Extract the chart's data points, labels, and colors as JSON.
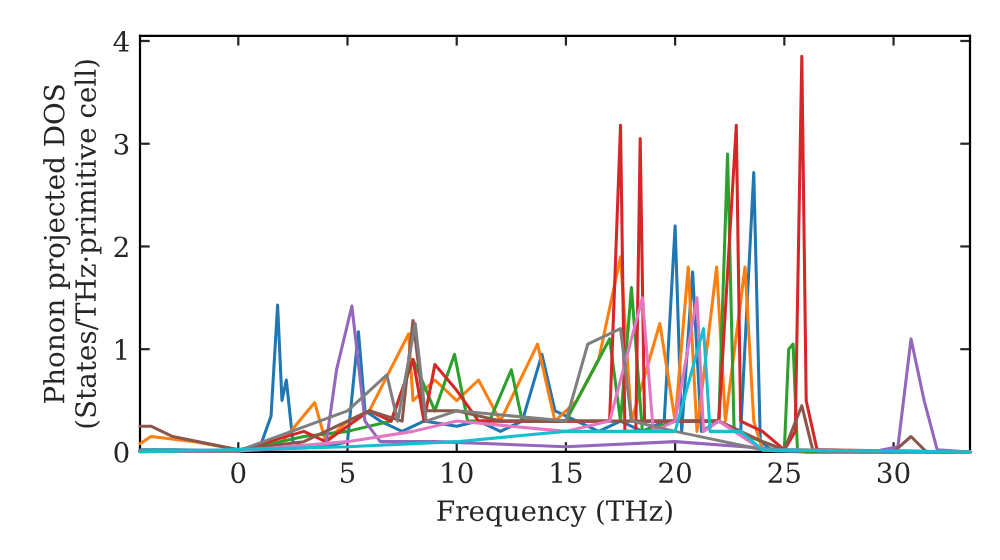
{
  "chart_data": {
    "type": "line",
    "xlabel": "Frequency (THz)",
    "ylabel": "Phonon projected DOS\n(States/THz·primitive cell)",
    "xlim": [
      -4.5,
      33.5
    ],
    "ylim": [
      0,
      4.05
    ],
    "xticks": [
      0,
      5,
      10,
      15,
      20,
      25,
      30
    ],
    "yticks": [
      0,
      1,
      2,
      3,
      4
    ],
    "grid": false,
    "marker": "none",
    "line_style": "solid",
    "series": [
      {
        "color": "#1f77b4",
        "x": [
          -4.5,
          -3,
          0,
          1,
          1.5,
          1.8,
          2.0,
          2.2,
          2.5,
          3,
          4,
          5,
          5.5,
          5.8,
          6.5,
          7.5,
          8.5,
          10,
          11,
          12,
          13,
          13.9,
          14.5,
          15.5,
          16.5,
          17.5,
          18.5,
          19.5,
          20.0,
          20.3,
          20.8,
          21.2,
          22,
          23,
          23.6,
          23.9,
          24.5,
          26,
          28,
          33.5
        ],
        "values": [
          0.02,
          0.02,
          0.01,
          0.05,
          0.35,
          1.43,
          0.5,
          0.7,
          0.1,
          0.05,
          0.05,
          0.1,
          1.17,
          0.4,
          0.3,
          0.2,
          0.3,
          0.25,
          0.3,
          0.2,
          0.3,
          0.95,
          0.4,
          0.3,
          0.2,
          0.3,
          0.2,
          0.3,
          2.2,
          0.2,
          1.75,
          0.2,
          0.3,
          0.2,
          2.72,
          0.1,
          0.01,
          0,
          0,
          0
        ]
      },
      {
        "color": "#ff7f0e",
        "x": [
          -4.5,
          -4,
          -2,
          0,
          2,
          3.5,
          4,
          5,
          6,
          7.8,
          8,
          9,
          10,
          11,
          12,
          13.7,
          14.5,
          15.5,
          16.5,
          17.5,
          18,
          19.3,
          20,
          20.6,
          21,
          21.9,
          22.3,
          23.2,
          23.6,
          24,
          28,
          33.5
        ],
        "values": [
          0.08,
          0.15,
          0.1,
          0.02,
          0.1,
          0.48,
          0.1,
          0.3,
          0.4,
          1.15,
          0.5,
          0.7,
          0.5,
          0.7,
          0.3,
          1.05,
          0.3,
          0.5,
          0.9,
          1.9,
          0.3,
          1.25,
          0.3,
          1.8,
          0.2,
          1.8,
          0.3,
          1.8,
          0.3,
          0.02,
          0,
          0
        ]
      },
      {
        "color": "#2ca02c",
        "x": [
          -4.5,
          0,
          3,
          5,
          7,
          8,
          9,
          9.9,
          10.5,
          11.5,
          12.5,
          13,
          15,
          17,
          17.5,
          18,
          18.5,
          20,
          22,
          22.4,
          22.7,
          24,
          25,
          25.2,
          25.4,
          25.6,
          26,
          33.5
        ],
        "values": [
          0.01,
          0.01,
          0.15,
          0.2,
          0.3,
          0.9,
          0.4,
          0.95,
          0.3,
          0.3,
          0.8,
          0.3,
          0.3,
          1.1,
          0.3,
          1.6,
          0.2,
          0.3,
          0.3,
          2.9,
          0.2,
          0.1,
          0.02,
          1.0,
          1.05,
          0.02,
          0,
          0
        ]
      },
      {
        "color": "#d62728",
        "x": [
          -4.5,
          0,
          3,
          4,
          6,
          7,
          8,
          8.5,
          9,
          10,
          11,
          13,
          15,
          17,
          17.5,
          17.7,
          18.2,
          18.4,
          18.6,
          20,
          22,
          22.8,
          23,
          24,
          25,
          25.5,
          25.8,
          26,
          26.5,
          33.5
        ],
        "values": [
          0.01,
          0.01,
          0.2,
          0.1,
          0.4,
          0.3,
          0.9,
          0.3,
          0.85,
          0.6,
          0.3,
          0.3,
          0.3,
          0.3,
          3.18,
          0.2,
          0.2,
          3.05,
          0.3,
          0.3,
          0.3,
          3.18,
          0.3,
          0.2,
          0.02,
          0.2,
          3.85,
          0.5,
          0.02,
          0
        ]
      },
      {
        "color": "#9467bd",
        "x": [
          -4.5,
          0,
          4,
          4.5,
          5.2,
          5.8,
          6.5,
          9,
          15,
          20,
          25,
          29,
          30.2,
          30.8,
          31.4,
          32,
          33.5
        ],
        "values": [
          0.01,
          0.01,
          0.05,
          0.8,
          1.42,
          0.3,
          0.1,
          0.1,
          0.05,
          0.1,
          0.02,
          0,
          0.05,
          1.1,
          0.5,
          0.02,
          0
        ]
      },
      {
        "color": "#8c564b",
        "x": [
          -4.5,
          -4,
          -3,
          0,
          3,
          6,
          7.5,
          8,
          8.5,
          10,
          12,
          15,
          18,
          22,
          24,
          25,
          25.8,
          26.3,
          30,
          30.8,
          31.5,
          33.5
        ],
        "values": [
          0.25,
          0.25,
          0.15,
          0.02,
          0.1,
          0.4,
          0.3,
          1.28,
          0.4,
          0.4,
          0.3,
          0.3,
          0.3,
          0.3,
          0.1,
          0.02,
          0.45,
          0.02,
          0,
          0.15,
          0,
          0
        ]
      },
      {
        "color": "#e377c2",
        "x": [
          -4.5,
          0,
          5,
          8,
          10,
          15,
          17,
          18.5,
          19,
          20,
          21,
          21.3,
          22,
          24,
          33.5
        ],
        "values": [
          0.01,
          0.01,
          0.1,
          0.2,
          0.3,
          0.2,
          0.3,
          1.5,
          0.2,
          0.3,
          1.5,
          0.2,
          0.3,
          0.02,
          0
        ]
      },
      {
        "color": "#7f7f7f",
        "x": [
          -4.5,
          0,
          5,
          6.8,
          7.3,
          8.1,
          8.6,
          10,
          15,
          16,
          17.5,
          18,
          20,
          24,
          33.5
        ],
        "values": [
          0.01,
          0.01,
          0.4,
          0.75,
          0.3,
          1.25,
          0.3,
          0.4,
          0.3,
          1.05,
          1.2,
          0.3,
          0.2,
          0.02,
          0
        ]
      },
      {
        "color": "#17becf",
        "x": [
          -4.5,
          5,
          10,
          15,
          20,
          21.3,
          21.6,
          23,
          24,
          33.5
        ],
        "values": [
          0,
          0.05,
          0.1,
          0.2,
          0.2,
          1.2,
          0.2,
          0.2,
          0.02,
          0
        ]
      }
    ]
  }
}
